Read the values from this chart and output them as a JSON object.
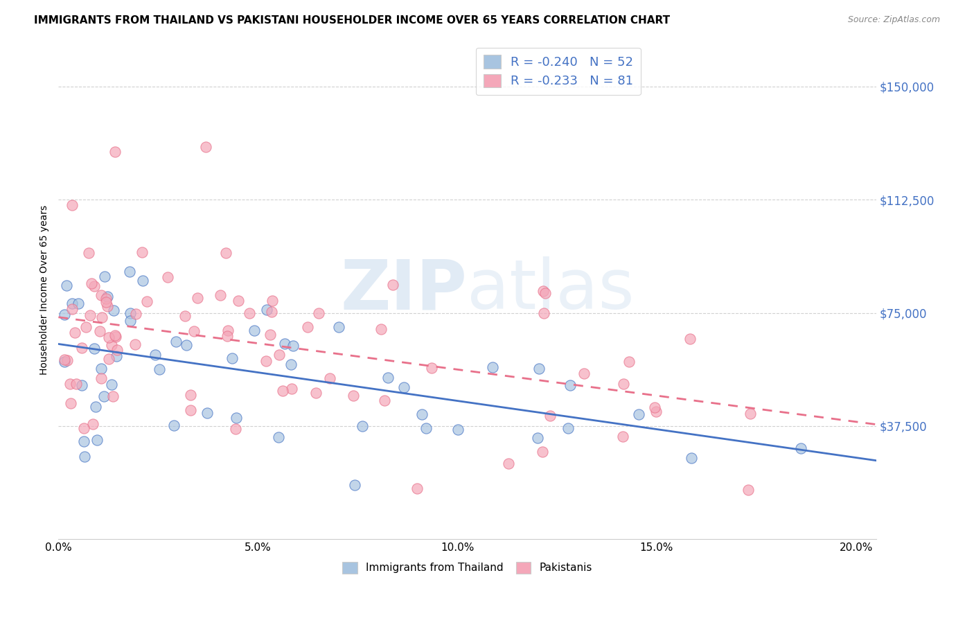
{
  "title": "IMMIGRANTS FROM THAILAND VS PAKISTANI HOUSEHOLDER INCOME OVER 65 YEARS CORRELATION CHART",
  "source": "Source: ZipAtlas.com",
  "ylabel": "Householder Income Over 65 years",
  "xlabel_ticks": [
    "0.0%",
    "5.0%",
    "10.0%",
    "15.0%",
    "20.0%"
  ],
  "xlabel_values": [
    0.0,
    0.05,
    0.1,
    0.15,
    0.2
  ],
  "ytick_labels": [
    "$37,500",
    "$75,000",
    "$112,500",
    "$150,000"
  ],
  "ytick_values": [
    37500,
    75000,
    112500,
    150000
  ],
  "ylim": [
    0,
    165000
  ],
  "xlim": [
    0.0,
    0.205
  ],
  "color_thai": "#a8c4e0",
  "color_pak": "#f4a7b9",
  "line_color_thai": "#4472c4",
  "line_color_pak": "#e8708a",
  "watermark_zip": "ZIP",
  "watermark_atlas": "atlas",
  "R_thai": -0.24,
  "N_thai": 52,
  "R_pak": -0.233,
  "N_pak": 81,
  "thai_intercept": 62000,
  "thai_slope": -130000,
  "pak_intercept": 70000,
  "pak_slope": -200000
}
